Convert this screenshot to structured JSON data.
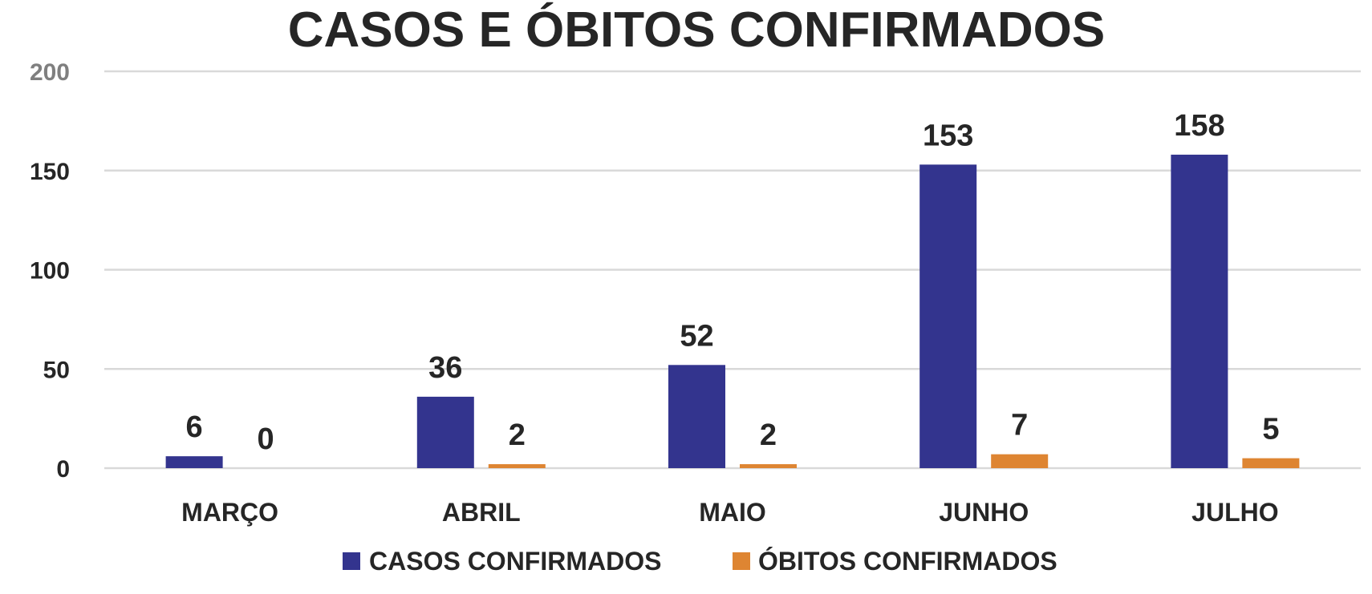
{
  "chart_data": {
    "type": "bar",
    "title": "CASOS E ÓBITOS CONFIRMADOS",
    "categories": [
      "MARÇO",
      "ABRIL",
      "MAIO",
      "JUNHO",
      "JULHO"
    ],
    "series": [
      {
        "name": "CASOS CONFIRMADOS",
        "values": [
          6,
          36,
          52,
          153,
          158
        ],
        "color": "#33348e"
      },
      {
        "name": "ÓBITOS CONFIRMADOS",
        "values": [
          0,
          2,
          2,
          7,
          5
        ],
        "color": "#de8532"
      }
    ],
    "y_ticks": [
      "0",
      "50",
      "100",
      "150",
      "200"
    ],
    "ylim": [
      0,
      200
    ],
    "grid": true,
    "legend_position": "bottom",
    "data_labels": true
  }
}
